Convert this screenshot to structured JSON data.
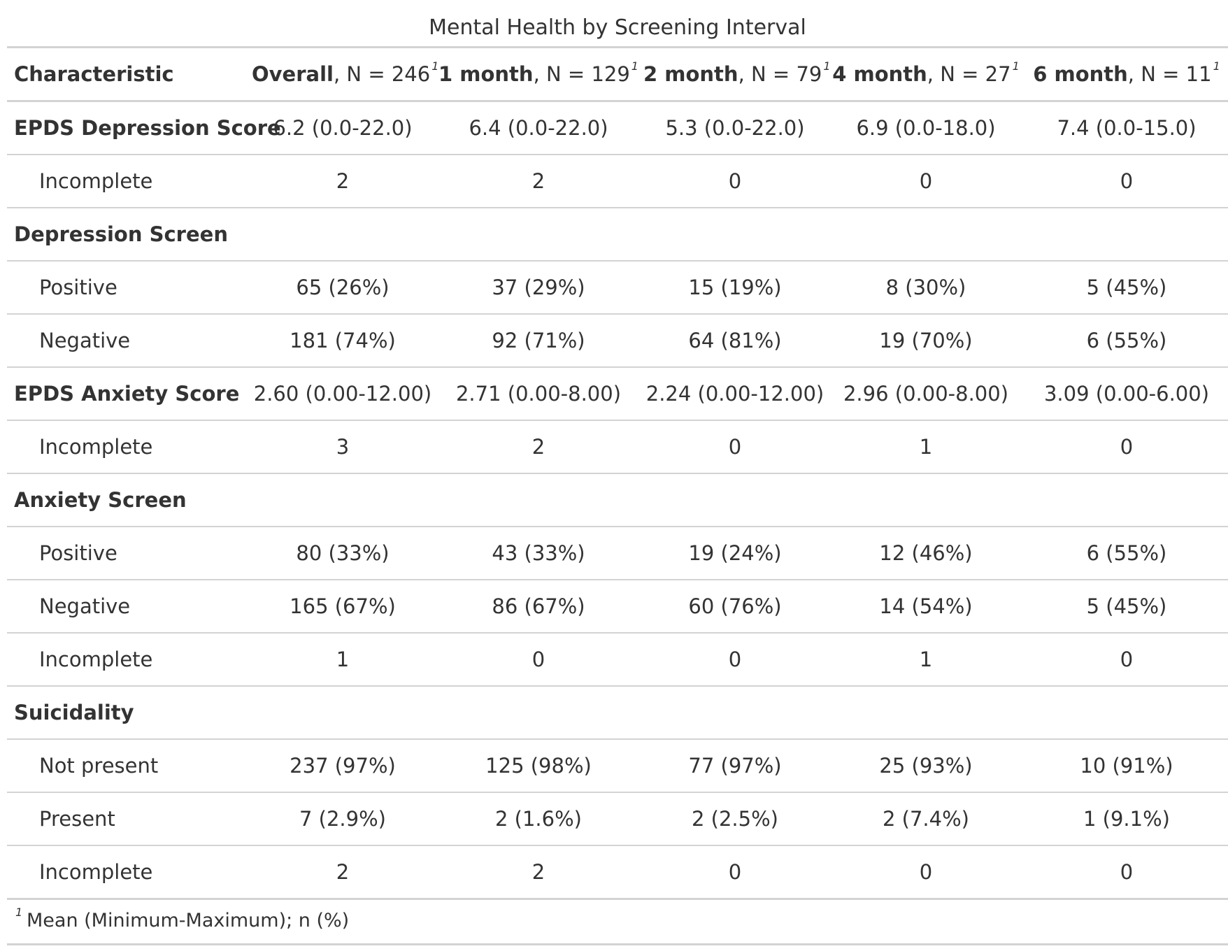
{
  "title": "Mental Health by Screening Interval",
  "header": {
    "characteristic": "Characteristic",
    "columns": [
      {
        "label": "Overall",
        "n_text": ", N = 246",
        "footnote": "1"
      },
      {
        "label": "1 month",
        "n_text": ", N = 129",
        "footnote": "1"
      },
      {
        "label": "2 month",
        "n_text": ", N = 79",
        "footnote": "1"
      },
      {
        "label": "4 month",
        "n_text": ", N = 27",
        "footnote": "1"
      },
      {
        "label": "6 month",
        "n_text": ", N = 11",
        "footnote": "1"
      }
    ]
  },
  "rows": [
    {
      "type": "var",
      "label": "EPDS Depression Score",
      "values": [
        "6.2 (0.0-22.0)",
        "6.4 (0.0-22.0)",
        "5.3 (0.0-22.0)",
        "6.9 (0.0-18.0)",
        "7.4 (0.0-15.0)"
      ]
    },
    {
      "type": "lvl",
      "label": "Incomplete",
      "values": [
        "2",
        "2",
        "0",
        "0",
        "0"
      ]
    },
    {
      "type": "var",
      "label": "Depression Screen",
      "values": [
        "",
        "",
        "",
        "",
        ""
      ]
    },
    {
      "type": "lvl",
      "label": "Positive",
      "values": [
        "65 (26%)",
        "37 (29%)",
        "15 (19%)",
        "8 (30%)",
        "5 (45%)"
      ]
    },
    {
      "type": "lvl",
      "label": "Negative",
      "values": [
        "181 (74%)",
        "92 (71%)",
        "64 (81%)",
        "19 (70%)",
        "6 (55%)"
      ]
    },
    {
      "type": "var",
      "label": "EPDS Anxiety Score",
      "values": [
        "2.60 (0.00-12.00)",
        "2.71 (0.00-8.00)",
        "2.24 (0.00-12.00)",
        "2.96 (0.00-8.00)",
        "3.09 (0.00-6.00)"
      ]
    },
    {
      "type": "lvl",
      "label": "Incomplete",
      "values": [
        "3",
        "2",
        "0",
        "1",
        "0"
      ]
    },
    {
      "type": "var",
      "label": "Anxiety Screen",
      "values": [
        "",
        "",
        "",
        "",
        ""
      ]
    },
    {
      "type": "lvl",
      "label": "Positive",
      "values": [
        "80 (33%)",
        "43 (33%)",
        "19 (24%)",
        "12 (46%)",
        "6 (55%)"
      ]
    },
    {
      "type": "lvl",
      "label": "Negative",
      "values": [
        "165 (67%)",
        "86 (67%)",
        "60 (76%)",
        "14 (54%)",
        "5 (45%)"
      ]
    },
    {
      "type": "lvl",
      "label": "Incomplete",
      "values": [
        "1",
        "0",
        "0",
        "1",
        "0"
      ]
    },
    {
      "type": "var",
      "label": "Suicidality",
      "values": [
        "",
        "",
        "",
        "",
        ""
      ]
    },
    {
      "type": "lvl",
      "label": "Not present",
      "values": [
        "237 (97%)",
        "125 (98%)",
        "77 (97%)",
        "25 (93%)",
        "10 (91%)"
      ]
    },
    {
      "type": "lvl",
      "label": "Present",
      "values": [
        "7 (2.9%)",
        "2 (1.6%)",
        "2 (2.5%)",
        "2 (7.4%)",
        "1 (9.1%)"
      ]
    },
    {
      "type": "lvl",
      "label": "Incomplete",
      "values": [
        "2",
        "2",
        "0",
        "0",
        "0"
      ]
    }
  ],
  "footnote": {
    "mark": "1",
    "text": "Mean (Minimum-Maximum); n (%)"
  }
}
